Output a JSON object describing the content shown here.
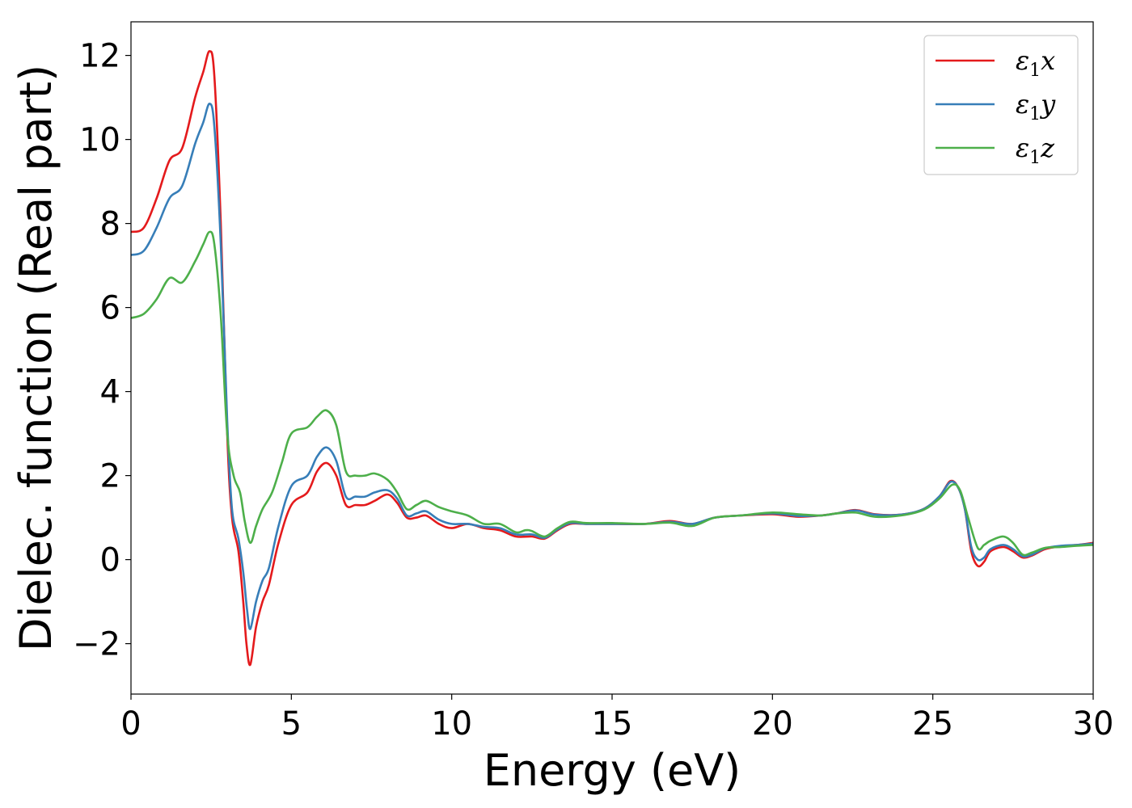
{
  "chart_data": {
    "type": "line",
    "title": "",
    "xlabel": "Energy (eV)",
    "ylabel": "Dielec. function (Real part)",
    "xlim": [
      0,
      30
    ],
    "ylim": [
      -3.2,
      12.8
    ],
    "xticks": [
      0,
      5,
      10,
      15,
      20,
      25,
      30
    ],
    "xtick_labels": [
      "0",
      "5",
      "10",
      "15",
      "20",
      "25",
      "30"
    ],
    "yticks": [
      -2,
      0,
      2,
      4,
      6,
      8,
      10,
      12
    ],
    "ytick_labels": [
      "−2",
      "0",
      "2",
      "4",
      "6",
      "8",
      "10",
      "12"
    ],
    "grid": false,
    "legend_position": "top-right",
    "series": [
      {
        "name": "ε1x",
        "legend_base": "ε",
        "legend_sub": "1",
        "legend_suffix": "x",
        "color": "#e41a1c",
        "points": [
          [
            0,
            7.8
          ],
          [
            0.4,
            7.9
          ],
          [
            0.8,
            8.6
          ],
          [
            1.2,
            9.5
          ],
          [
            1.6,
            9.8
          ],
          [
            2.0,
            11.0
          ],
          [
            2.25,
            11.6
          ],
          [
            2.45,
            12.1
          ],
          [
            2.6,
            11.5
          ],
          [
            2.8,
            8.0
          ],
          [
            3.0,
            3.0
          ],
          [
            3.15,
            1.0
          ],
          [
            3.35,
            0.2
          ],
          [
            3.5,
            -1.0
          ],
          [
            3.6,
            -2.0
          ],
          [
            3.72,
            -2.5
          ],
          [
            3.9,
            -1.6
          ],
          [
            4.1,
            -1.0
          ],
          [
            4.3,
            -0.6
          ],
          [
            4.6,
            0.4
          ],
          [
            5.0,
            1.3
          ],
          [
            5.5,
            1.6
          ],
          [
            5.8,
            2.1
          ],
          [
            6.1,
            2.3
          ],
          [
            6.4,
            2.0
          ],
          [
            6.7,
            1.3
          ],
          [
            7.0,
            1.3
          ],
          [
            7.3,
            1.3
          ],
          [
            7.6,
            1.4
          ],
          [
            8.0,
            1.55
          ],
          [
            8.3,
            1.35
          ],
          [
            8.6,
            1.0
          ],
          [
            8.9,
            1.0
          ],
          [
            9.2,
            1.05
          ],
          [
            9.6,
            0.85
          ],
          [
            10.0,
            0.75
          ],
          [
            10.5,
            0.85
          ],
          [
            11.0,
            0.75
          ],
          [
            11.5,
            0.7
          ],
          [
            12.0,
            0.55
          ],
          [
            12.5,
            0.55
          ],
          [
            12.9,
            0.5
          ],
          [
            13.3,
            0.7
          ],
          [
            13.7,
            0.85
          ],
          [
            14.2,
            0.85
          ],
          [
            15.0,
            0.85
          ],
          [
            16.0,
            0.85
          ],
          [
            16.8,
            0.92
          ],
          [
            17.5,
            0.85
          ],
          [
            18.2,
            1.0
          ],
          [
            19.0,
            1.05
          ],
          [
            20.0,
            1.08
          ],
          [
            20.8,
            1.02
          ],
          [
            21.5,
            1.05
          ],
          [
            22.0,
            1.1
          ],
          [
            22.6,
            1.18
          ],
          [
            23.2,
            1.08
          ],
          [
            24.0,
            1.07
          ],
          [
            24.7,
            1.2
          ],
          [
            25.2,
            1.5
          ],
          [
            25.55,
            1.87
          ],
          [
            25.8,
            1.7
          ],
          [
            26.0,
            1.2
          ],
          [
            26.2,
            0.2
          ],
          [
            26.4,
            -0.15
          ],
          [
            26.6,
            -0.05
          ],
          [
            26.8,
            0.2
          ],
          [
            27.2,
            0.3
          ],
          [
            27.5,
            0.2
          ],
          [
            27.8,
            0.05
          ],
          [
            28.1,
            0.1
          ],
          [
            28.5,
            0.25
          ],
          [
            29.0,
            0.32
          ],
          [
            29.5,
            0.35
          ],
          [
            30.0,
            0.4
          ]
        ]
      },
      {
        "name": "ε1y",
        "legend_base": "ε",
        "legend_sub": "1",
        "legend_suffix": "y",
        "color": "#377eb8",
        "points": [
          [
            0,
            7.25
          ],
          [
            0.4,
            7.35
          ],
          [
            0.8,
            7.9
          ],
          [
            1.2,
            8.6
          ],
          [
            1.6,
            8.9
          ],
          [
            2.0,
            9.9
          ],
          [
            2.25,
            10.4
          ],
          [
            2.45,
            10.85
          ],
          [
            2.6,
            10.3
          ],
          [
            2.8,
            7.5
          ],
          [
            3.0,
            3.3
          ],
          [
            3.15,
            1.2
          ],
          [
            3.35,
            0.5
          ],
          [
            3.5,
            -0.3
          ],
          [
            3.62,
            -1.2
          ],
          [
            3.72,
            -1.65
          ],
          [
            3.9,
            -1.0
          ],
          [
            4.1,
            -0.5
          ],
          [
            4.3,
            -0.2
          ],
          [
            4.6,
            0.8
          ],
          [
            5.0,
            1.75
          ],
          [
            5.5,
            2.0
          ],
          [
            5.8,
            2.45
          ],
          [
            6.1,
            2.67
          ],
          [
            6.4,
            2.35
          ],
          [
            6.7,
            1.5
          ],
          [
            7.0,
            1.5
          ],
          [
            7.3,
            1.5
          ],
          [
            7.6,
            1.6
          ],
          [
            8.0,
            1.65
          ],
          [
            8.3,
            1.45
          ],
          [
            8.6,
            1.05
          ],
          [
            8.9,
            1.1
          ],
          [
            9.2,
            1.15
          ],
          [
            9.6,
            0.95
          ],
          [
            10.0,
            0.85
          ],
          [
            10.5,
            0.85
          ],
          [
            11.0,
            0.78
          ],
          [
            11.5,
            0.75
          ],
          [
            12.0,
            0.6
          ],
          [
            12.5,
            0.6
          ],
          [
            12.9,
            0.52
          ],
          [
            13.3,
            0.72
          ],
          [
            13.7,
            0.87
          ],
          [
            14.2,
            0.85
          ],
          [
            15.0,
            0.85
          ],
          [
            16.0,
            0.85
          ],
          [
            16.8,
            0.9
          ],
          [
            17.5,
            0.85
          ],
          [
            18.2,
            1.0
          ],
          [
            19.0,
            1.05
          ],
          [
            20.0,
            1.1
          ],
          [
            20.8,
            1.04
          ],
          [
            21.5,
            1.05
          ],
          [
            22.0,
            1.1
          ],
          [
            22.6,
            1.17
          ],
          [
            23.2,
            1.07
          ],
          [
            24.0,
            1.07
          ],
          [
            24.7,
            1.2
          ],
          [
            25.2,
            1.5
          ],
          [
            25.55,
            1.85
          ],
          [
            25.8,
            1.7
          ],
          [
            26.0,
            1.2
          ],
          [
            26.2,
            0.3
          ],
          [
            26.4,
            0.0
          ],
          [
            26.6,
            0.05
          ],
          [
            26.8,
            0.25
          ],
          [
            27.2,
            0.35
          ],
          [
            27.5,
            0.25
          ],
          [
            27.8,
            0.08
          ],
          [
            28.1,
            0.12
          ],
          [
            28.5,
            0.27
          ],
          [
            29.0,
            0.33
          ],
          [
            29.5,
            0.35
          ],
          [
            30.0,
            0.38
          ]
        ]
      },
      {
        "name": "ε1z",
        "legend_base": "ε",
        "legend_sub": "1",
        "legend_suffix": "z",
        "color": "#4daf4a",
        "points": [
          [
            0,
            5.75
          ],
          [
            0.4,
            5.85
          ],
          [
            0.8,
            6.2
          ],
          [
            1.2,
            6.7
          ],
          [
            1.6,
            6.6
          ],
          [
            2.0,
            7.1
          ],
          [
            2.25,
            7.5
          ],
          [
            2.45,
            7.8
          ],
          [
            2.6,
            7.5
          ],
          [
            2.8,
            5.8
          ],
          [
            3.0,
            3.0
          ],
          [
            3.2,
            2.0
          ],
          [
            3.4,
            1.6
          ],
          [
            3.55,
            0.9
          ],
          [
            3.72,
            0.4
          ],
          [
            3.9,
            0.8
          ],
          [
            4.1,
            1.2
          ],
          [
            4.4,
            1.6
          ],
          [
            4.7,
            2.3
          ],
          [
            5.0,
            3.0
          ],
          [
            5.5,
            3.15
          ],
          [
            5.8,
            3.4
          ],
          [
            6.1,
            3.55
          ],
          [
            6.4,
            3.2
          ],
          [
            6.7,
            2.1
          ],
          [
            7.0,
            2.0
          ],
          [
            7.3,
            2.0
          ],
          [
            7.6,
            2.05
          ],
          [
            8.0,
            1.9
          ],
          [
            8.3,
            1.6
          ],
          [
            8.6,
            1.2
          ],
          [
            8.9,
            1.3
          ],
          [
            9.2,
            1.4
          ],
          [
            9.6,
            1.25
          ],
          [
            10.0,
            1.15
          ],
          [
            10.5,
            1.05
          ],
          [
            11.0,
            0.85
          ],
          [
            11.5,
            0.85
          ],
          [
            12.0,
            0.65
          ],
          [
            12.3,
            0.7
          ],
          [
            12.5,
            0.68
          ],
          [
            12.9,
            0.55
          ],
          [
            13.3,
            0.75
          ],
          [
            13.7,
            0.9
          ],
          [
            14.2,
            0.87
          ],
          [
            15.0,
            0.87
          ],
          [
            16.0,
            0.85
          ],
          [
            16.8,
            0.88
          ],
          [
            17.5,
            0.8
          ],
          [
            18.2,
            1.0
          ],
          [
            19.0,
            1.05
          ],
          [
            20.0,
            1.12
          ],
          [
            20.8,
            1.08
          ],
          [
            21.5,
            1.05
          ],
          [
            22.0,
            1.1
          ],
          [
            22.6,
            1.12
          ],
          [
            23.2,
            1.02
          ],
          [
            24.0,
            1.05
          ],
          [
            24.7,
            1.18
          ],
          [
            25.2,
            1.45
          ],
          [
            25.6,
            1.78
          ],
          [
            25.85,
            1.65
          ],
          [
            26.1,
            1.0
          ],
          [
            26.4,
            0.28
          ],
          [
            26.6,
            0.35
          ],
          [
            26.8,
            0.45
          ],
          [
            27.2,
            0.55
          ],
          [
            27.5,
            0.4
          ],
          [
            27.8,
            0.12
          ],
          [
            28.1,
            0.17
          ],
          [
            28.5,
            0.28
          ],
          [
            29.0,
            0.3
          ],
          [
            29.5,
            0.33
          ],
          [
            30.0,
            0.35
          ]
        ]
      }
    ]
  }
}
